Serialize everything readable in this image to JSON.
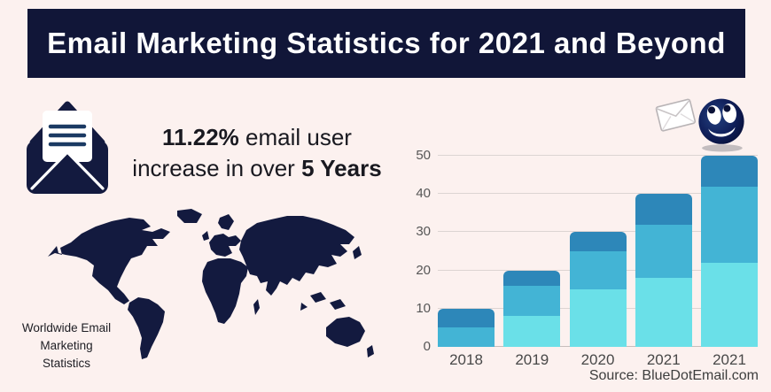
{
  "header": {
    "title": "Email Marketing Statistics for 2021 and Beyond"
  },
  "stat": {
    "bold1": "11.22%",
    "text1": " email user",
    "text2": "increase in over ",
    "bold2": "5 Years"
  },
  "map": {
    "caption_line1": "Worldwide Email",
    "caption_line2": "Marketing",
    "caption_line3": "Statistics"
  },
  "source": {
    "text": "Source: BlueDotEmail.com"
  },
  "icons": [
    "open-envelope-with-letter-icon",
    "world-map-silhouette",
    "smiley-ball-emoji",
    "paper-envelope-icon"
  ],
  "colors": {
    "background": "#fcf1ef",
    "banner_navy": "#111638",
    "icon_navy": "#131a3f",
    "gridline": "#dcd4d2",
    "bar_light": "#6ae0e8",
    "bar_medium": "#43b4d5",
    "bar_dark": "#2d87b9"
  },
  "chart_data": {
    "type": "bar",
    "stacked": true,
    "title": "",
    "xlabel": "",
    "ylabel": "",
    "categories": [
      "2018",
      "2019",
      "2020",
      "2021",
      "2021"
    ],
    "series": [
      {
        "name": "segment-bottom-light",
        "color": "#6ae0e8",
        "values": [
          0,
          8,
          15,
          18,
          22
        ]
      },
      {
        "name": "segment-middle-medium",
        "color": "#43b4d5",
        "values": [
          5,
          8,
          10,
          14,
          20
        ]
      },
      {
        "name": "segment-top-dark",
        "color": "#2d87b9",
        "values": [
          5,
          4,
          5,
          8,
          8
        ]
      }
    ],
    "totals": [
      10,
      20,
      30,
      40,
      50
    ],
    "yticks": [
      0,
      10,
      20,
      30,
      40,
      50
    ],
    "ylim": [
      0,
      50
    ],
    "grid": true,
    "legend": "none"
  }
}
